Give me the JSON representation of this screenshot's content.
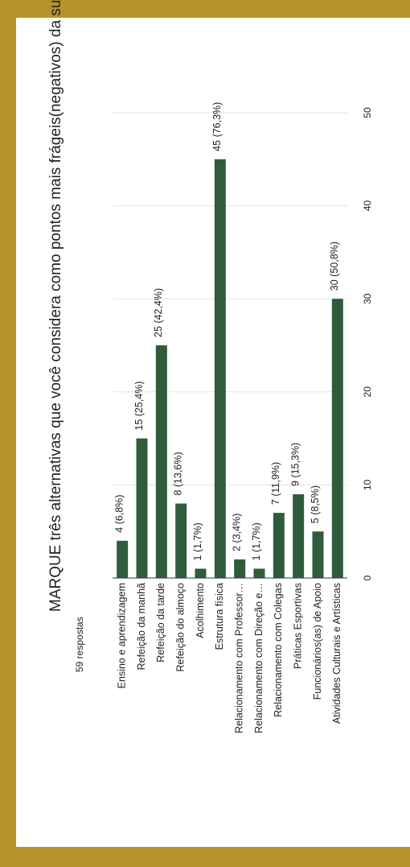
{
  "chart_data": {
    "type": "bar",
    "orientation": "horizontal",
    "title": "MARQUE três alternativas que você considera como pontos mais frágeis(negativos) da sua escola.",
    "subtitle": "59 respostas",
    "categories": [
      "Ensino e aprendizagem",
      "Refeição da manhã",
      "Refeição da tarde",
      "Refeição do almoço",
      "Acolhimento",
      "Estrutura física",
      "Relacionamento com Professor…",
      "Relacionamento com Direção e…",
      "Relacionamento com Colegas",
      "Práticas Esportivas",
      "Funcionários(as) de Apoio",
      "Atividades Culturais e Artísticas"
    ],
    "values": [
      4,
      15,
      25,
      8,
      1,
      45,
      2,
      1,
      7,
      9,
      5,
      30
    ],
    "value_labels": [
      "4 (6,8%)",
      "15 (25,4%)",
      "25 (42,4%)",
      "8 (13,6%)",
      "1 (1,7%)",
      "45 (76,3%)",
      "2 (3,4%)",
      "1 (1,7%)",
      "7 (11,9%)",
      "9 (15,3%)",
      "5 (8,5%)",
      "30 (50,8%)"
    ],
    "color": "#2f5d3c",
    "xlim": [
      0,
      50
    ],
    "xticks": [
      0,
      10,
      20,
      30,
      40,
      50
    ],
    "grid": true
  }
}
